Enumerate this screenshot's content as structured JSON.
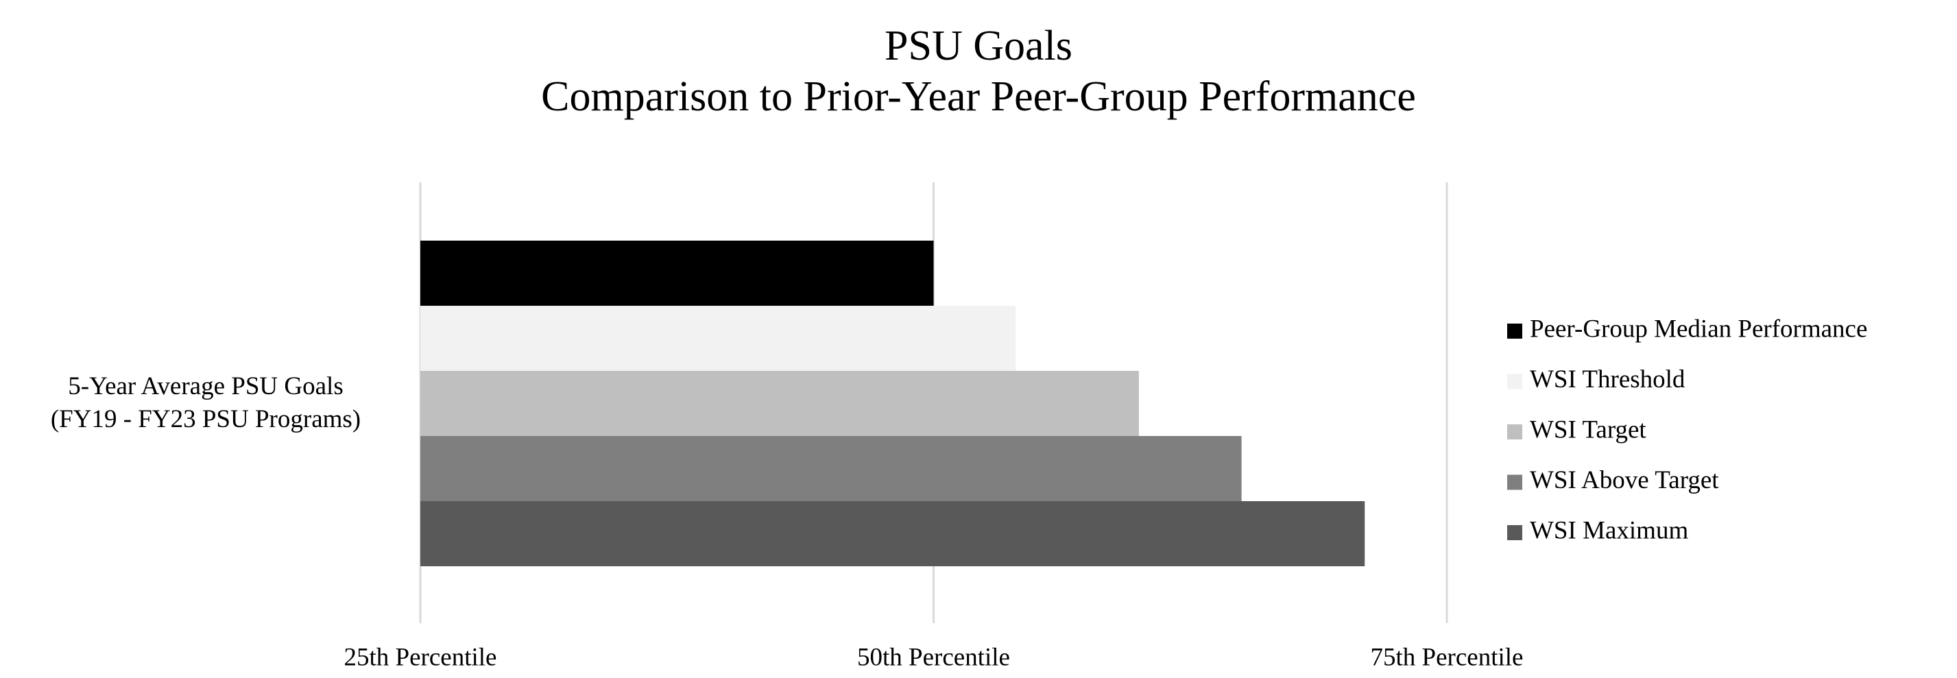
{
  "chart_data": {
    "type": "bar",
    "orientation": "horizontal",
    "title": "PSU Goals",
    "subtitle": "Comparison to Prior-Year Peer-Group Performance",
    "categories": [
      "5-Year Average PSU Goals\n(FY19 - FY23 PSU Programs)"
    ],
    "series": [
      {
        "name": "Peer-Group Median Performance",
        "color": "#000000",
        "values": [
          50
        ]
      },
      {
        "name": "WSI Threshold",
        "color": "#f2f2f2",
        "values": [
          54
        ]
      },
      {
        "name": "WSI Target",
        "color": "#bfbfbf",
        "values": [
          60
        ]
      },
      {
        "name": "WSI Above Target",
        "color": "#7f7f7f",
        "values": [
          65
        ]
      },
      {
        "name": "WSI Maximum",
        "color": "#595959",
        "values": [
          71
        ]
      }
    ],
    "xlim": [
      25,
      75
    ],
    "xticks": [
      {
        "value": 25,
        "label": "25th Percentile"
      },
      {
        "value": 50,
        "label": "50th Percentile"
      },
      {
        "value": 75,
        "label": "75th Percentile"
      }
    ],
    "grid": true,
    "legend": "right"
  }
}
